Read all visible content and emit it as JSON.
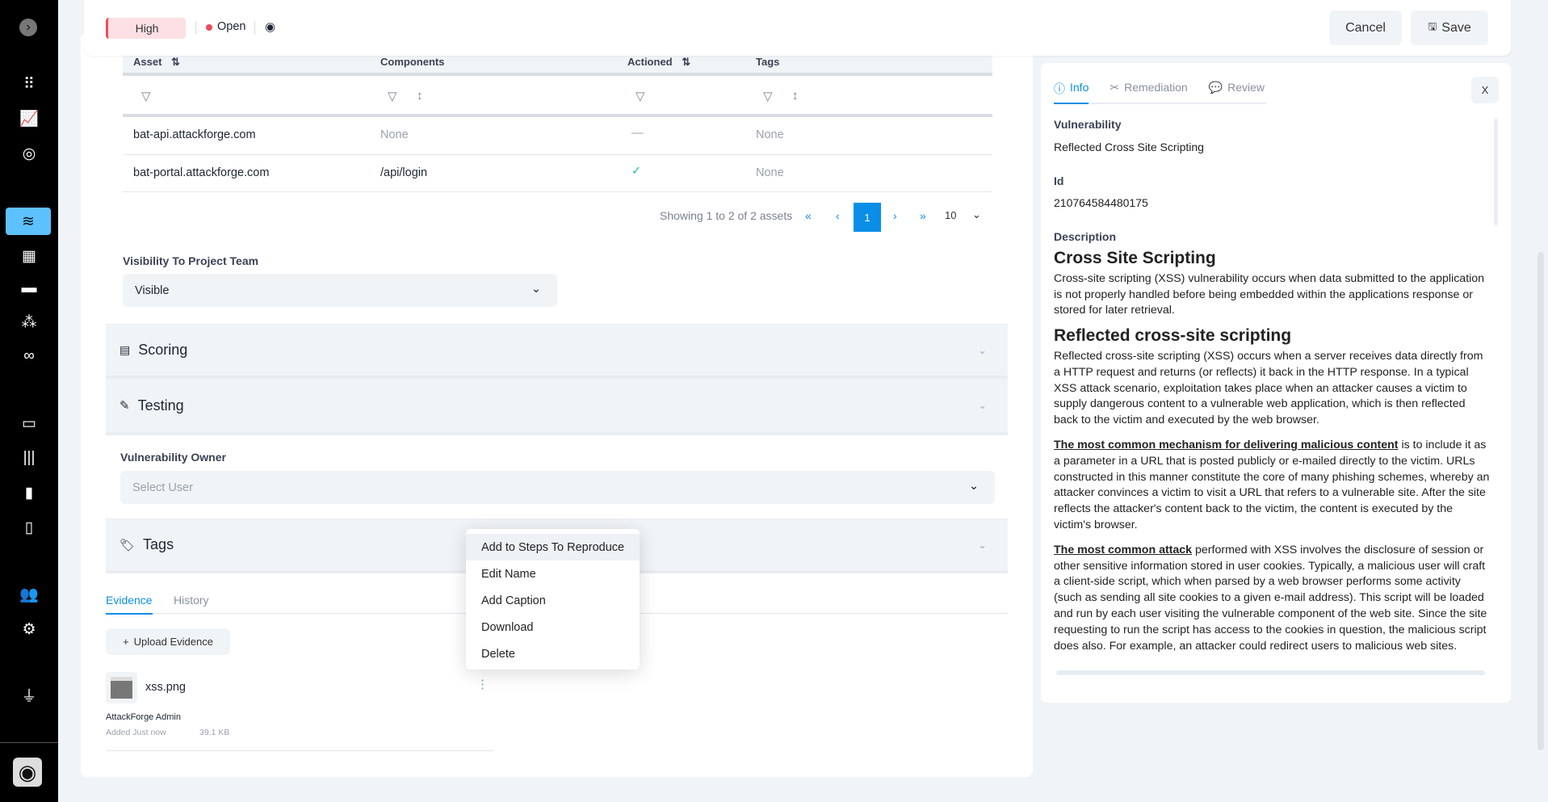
{
  "sidebar": {
    "items": [
      {
        "icon": "chevron-right-circle-icon",
        "glyph": "›"
      },
      {
        "icon": "apps-grid-icon",
        "glyph": "⠿"
      },
      {
        "icon": "analytics-icon",
        "glyph": "📈"
      },
      {
        "icon": "target-icon",
        "glyph": "◎"
      },
      {
        "icon": "layers-icon",
        "glyph": "≋",
        "active": true
      },
      {
        "icon": "calendar-icon",
        "glyph": "▦"
      },
      {
        "icon": "folder-icon",
        "glyph": "▬"
      },
      {
        "icon": "cubes-icon",
        "glyph": "⁂"
      },
      {
        "icon": "link-icon",
        "glyph": "∞"
      },
      {
        "icon": "monitor-icon",
        "glyph": "▭"
      },
      {
        "icon": "library-icon",
        "glyph": "|||"
      },
      {
        "icon": "book-icon",
        "glyph": "▮"
      },
      {
        "icon": "file-icon",
        "glyph": "▯"
      },
      {
        "icon": "users-icon",
        "glyph": "👥"
      },
      {
        "icon": "gear-icon",
        "glyph": "⚙"
      },
      {
        "icon": "plug-icon",
        "glyph": "⏚"
      },
      {
        "icon": "user-avatar-icon",
        "glyph": "◉"
      }
    ]
  },
  "header": {
    "severity": "High",
    "status": "Open",
    "status_color": "#f04a5b",
    "cancel": "Cancel",
    "save": "Save"
  },
  "assets_table": {
    "columns": [
      "Asset",
      "Components",
      "Actioned",
      "Tags"
    ],
    "rows": [
      {
        "asset": "bat-api.attackforge.com",
        "components": "None",
        "actioned": "—",
        "tags": "None"
      },
      {
        "asset": "bat-portal.attackforge.com",
        "components": "/api/login",
        "actioned": "✓",
        "tags": "None"
      }
    ],
    "pagination": {
      "summary": "Showing 1 to 2 of 2 assets",
      "current_page": "1",
      "page_size": "10"
    }
  },
  "visibility": {
    "label": "Visibility To Project Team",
    "value": "Visible"
  },
  "sections": {
    "scoring": "Scoring",
    "testing": "Testing",
    "tags": "Tags"
  },
  "owner": {
    "label": "Vulnerability Owner",
    "placeholder": "Select User"
  },
  "evidence": {
    "tabs": [
      "Evidence",
      "History"
    ],
    "upload": "Upload Evidence",
    "file": {
      "name": "xss.png",
      "author": "AttackForge Admin",
      "added": "Added Just now",
      "size": "39.1 KB"
    }
  },
  "context_menu": [
    "Add to Steps To Reproduce",
    "Edit Name",
    "Add Caption",
    "Download",
    "Delete"
  ],
  "right_panel": {
    "tabs": [
      "Info",
      "Remediation",
      "Review"
    ],
    "close": "X",
    "vulnerability_label": "Vulnerability",
    "vulnerability": "Reflected Cross Site Scripting",
    "id_label": "Id",
    "id": "210764584480175",
    "description_label": "Description",
    "h1": "Cross Site Scripting",
    "p1": "Cross-site scripting (XSS) vulnerability occurs when data submitted to the application is not properly handled before being embedded within the applications response or stored for later retrieval.",
    "h2": "Reflected cross-site scripting",
    "p2": "Reflected cross-site scripting (XSS) occurs when a server receives data directly from a HTTP request and returns (or reflects) it back in the HTTP response. In a typical XSS attack scenario, exploitation takes place when an attacker causes a victim to supply dangerous content to a vulnerable web application, which is then reflected back to the victim and executed by the web browser.",
    "p3_strong": "The most common mechanism for delivering malicious content",
    "p3": " is to include it as a parameter in a URL that is posted publicly or e-mailed directly to the victim. URLs constructed in this manner constitute the core of many phishing schemes, whereby an attacker convinces a victim to visit a URL that refers to a vulnerable site. After the site reflects the attacker's content back to the victim, the content is executed by the victim's browser.",
    "p4_strong": "The most common attack",
    "p4": " performed with XSS involves the disclosure of session or other sensitive information stored in user cookies. Typically, a malicious user will craft a client-side script, which when parsed by a web browser performs some activity (such as sending all site cookies to a given e-mail address). This script will be loaded and run by each user visiting the vulnerable component of the web site. Since the site requesting to run the script has access to the cookies in question, the malicious script does also. For example, an attacker could redirect users to malicious web sites."
  },
  "colors": {
    "accent": "#0a8ee8",
    "sidebar_active": "#5ec1ff",
    "high_bg": "#fde0e3",
    "success": "#1fbfa0"
  }
}
